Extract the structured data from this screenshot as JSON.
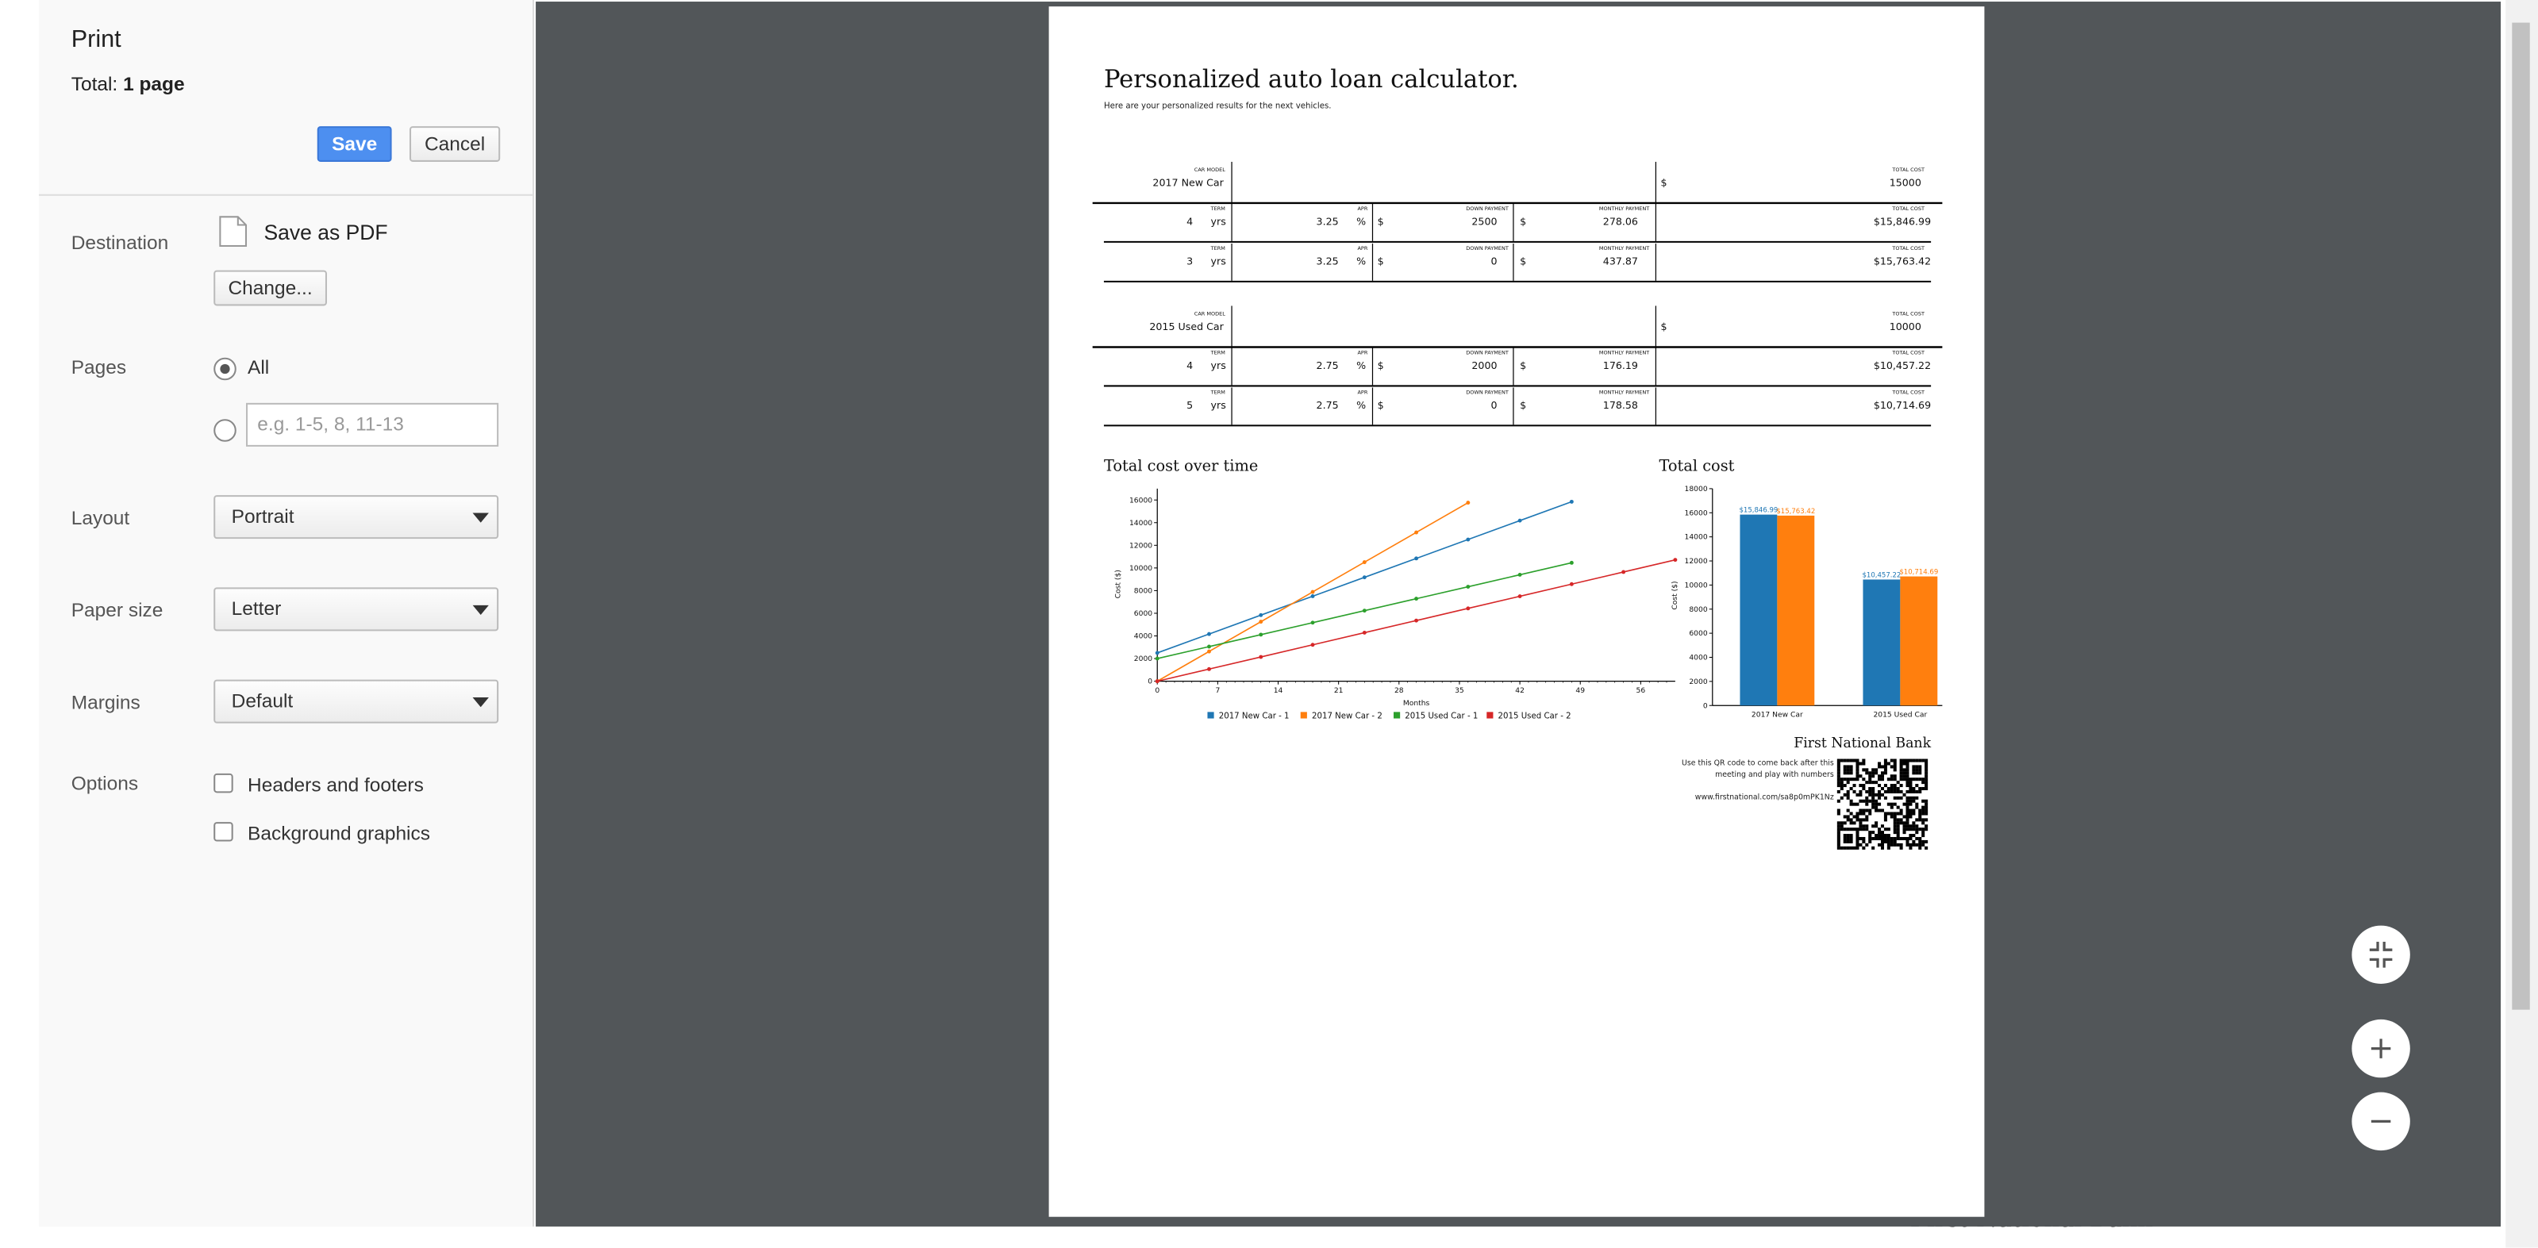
{
  "dialog": {
    "title": "Print",
    "total_label": "Total:",
    "total_value": "1 page",
    "save": "Save",
    "cancel": "Cancel",
    "destination": {
      "label": "Destination",
      "value": "Save as PDF",
      "change": "Change..."
    },
    "pages": {
      "label": "Pages",
      "all": "All",
      "placeholder": "e.g. 1-5, 8, 11-13"
    },
    "layout": {
      "label": "Layout",
      "value": "Portrait"
    },
    "paper_size": {
      "label": "Paper size",
      "value": "Letter"
    },
    "margins": {
      "label": "Margins",
      "value": "Default"
    },
    "options": {
      "label": "Options",
      "items": [
        "Headers and footers",
        "Background graphics"
      ]
    }
  },
  "preview": {
    "title": "Personalized auto loan calculator.",
    "subtitle": "Here are your personalized results for the next vehicles.",
    "vehicles": [
      {
        "model_label": "CAR MODEL",
        "model": "2017 New Car",
        "currency": "$",
        "total_label": "TOTAL COST",
        "total": "15000",
        "scenarios": [
          {
            "term_label": "TERM",
            "term": "4",
            "term_unit": "yrs",
            "apr_label": "APR",
            "apr": "3.25",
            "apr_unit": "%",
            "down_label": "DOWN PAYMENT",
            "down_currency": "$",
            "down": "2500",
            "monthly_label": "MONTHLY PAYMENT",
            "monthly_currency": "$",
            "monthly": "278.06",
            "total_label": "TOTAL COST",
            "total": "$15,846.99"
          },
          {
            "term_label": "TERM",
            "term": "3",
            "term_unit": "yrs",
            "apr_label": "APR",
            "apr": "3.25",
            "apr_unit": "%",
            "down_label": "DOWN PAYMENT",
            "down_currency": "$",
            "down": "0",
            "monthly_label": "MONTHLY PAYMENT",
            "monthly_currency": "$",
            "monthly": "437.87",
            "total_label": "TOTAL COST",
            "total": "$15,763.42"
          }
        ]
      },
      {
        "model_label": "CAR MODEL",
        "model": "2015 Used Car",
        "currency": "$",
        "total_label": "TOTAL COST",
        "total": "10000",
        "scenarios": [
          {
            "term_label": "TERM",
            "term": "4",
            "term_unit": "yrs",
            "apr_label": "APR",
            "apr": "2.75",
            "apr_unit": "%",
            "down_label": "DOWN PAYMENT",
            "down_currency": "$",
            "down": "2000",
            "monthly_label": "MONTHLY PAYMENT",
            "monthly_currency": "$",
            "monthly": "176.19",
            "total_label": "TOTAL COST",
            "total": "$10,457.22"
          },
          {
            "term_label": "TERM",
            "term": "5",
            "term_unit": "yrs",
            "apr_label": "APR",
            "apr": "2.75",
            "apr_unit": "%",
            "down_label": "DOWN PAYMENT",
            "down_currency": "$",
            "down": "0",
            "monthly_label": "MONTHLY PAYMENT",
            "monthly_currency": "$",
            "monthly": "178.58",
            "total_label": "TOTAL COST",
            "total": "$10,714.69"
          }
        ]
      }
    ],
    "footer": {
      "bank": "First National Bank",
      "note": [
        "Use this QR code to come back after this",
        "meeting and play with numbers"
      ],
      "url": "www.firstnational.com/sa8p0mPK1Nz"
    }
  },
  "chart_data": [
    {
      "type": "line",
      "title": "Total cost over time",
      "x_label": "Months",
      "y_label": "Cost ($)",
      "xlim": [
        0,
        60
      ],
      "xticks": [
        0,
        7,
        14,
        21,
        28,
        35,
        42,
        49,
        56
      ],
      "ylim": [
        0,
        17000
      ],
      "yticks": [
        0,
        2000,
        4000,
        6000,
        8000,
        10000,
        12000,
        14000,
        16000
      ],
      "series": [
        {
          "name": "2017 New Car - 1",
          "color": "#1f77b4",
          "x": [
            0,
            6,
            12,
            18,
            24,
            30,
            36,
            42,
            48
          ],
          "values": [
            2500,
            4168,
            5837,
            7505,
            9173,
            10842,
            12510,
            14179,
            15847
          ]
        },
        {
          "name": "2017 New Car - 2",
          "color": "#ff7f0e",
          "x": [
            0,
            6,
            12,
            18,
            24,
            30,
            36
          ],
          "values": [
            0,
            2627,
            5254,
            7882,
            10509,
            13136,
            15763
          ]
        },
        {
          "name": "2015 Used Car - 1",
          "color": "#2ca02c",
          "x": [
            0,
            6,
            12,
            18,
            24,
            30,
            36,
            42,
            48
          ],
          "values": [
            2000,
            3057,
            4114,
            5171,
            6229,
            7286,
            8343,
            9400,
            10457
          ]
        },
        {
          "name": "2015 Used Car - 2",
          "color": "#d62728",
          "x": [
            0,
            6,
            12,
            18,
            24,
            30,
            36,
            42,
            48,
            54,
            60
          ],
          "values": [
            0,
            1071,
            2143,
            3214,
            4286,
            5357,
            6429,
            7500,
            8572,
            9643,
            10715
          ]
        }
      ]
    },
    {
      "type": "bar",
      "title": "Total cost",
      "y_label": "Cost ($)",
      "categories": [
        "2017 New Car",
        "2015 Used Car"
      ],
      "ylim": [
        0,
        18000
      ],
      "yticks": [
        0,
        2000,
        4000,
        6000,
        8000,
        10000,
        12000,
        14000,
        16000,
        18000
      ],
      "series": [
        {
          "color": "#1f77b4",
          "values": [
            15846.99,
            10457.22
          ],
          "value_labels": [
            "$15,846.99",
            "$10,457.22"
          ]
        },
        {
          "color": "#ff7f0e",
          "values": [
            15763.42,
            10714.69
          ],
          "value_labels": [
            "$15,763.42",
            "$10,714.69"
          ]
        }
      ]
    }
  ],
  "background_text": "First National Bank"
}
